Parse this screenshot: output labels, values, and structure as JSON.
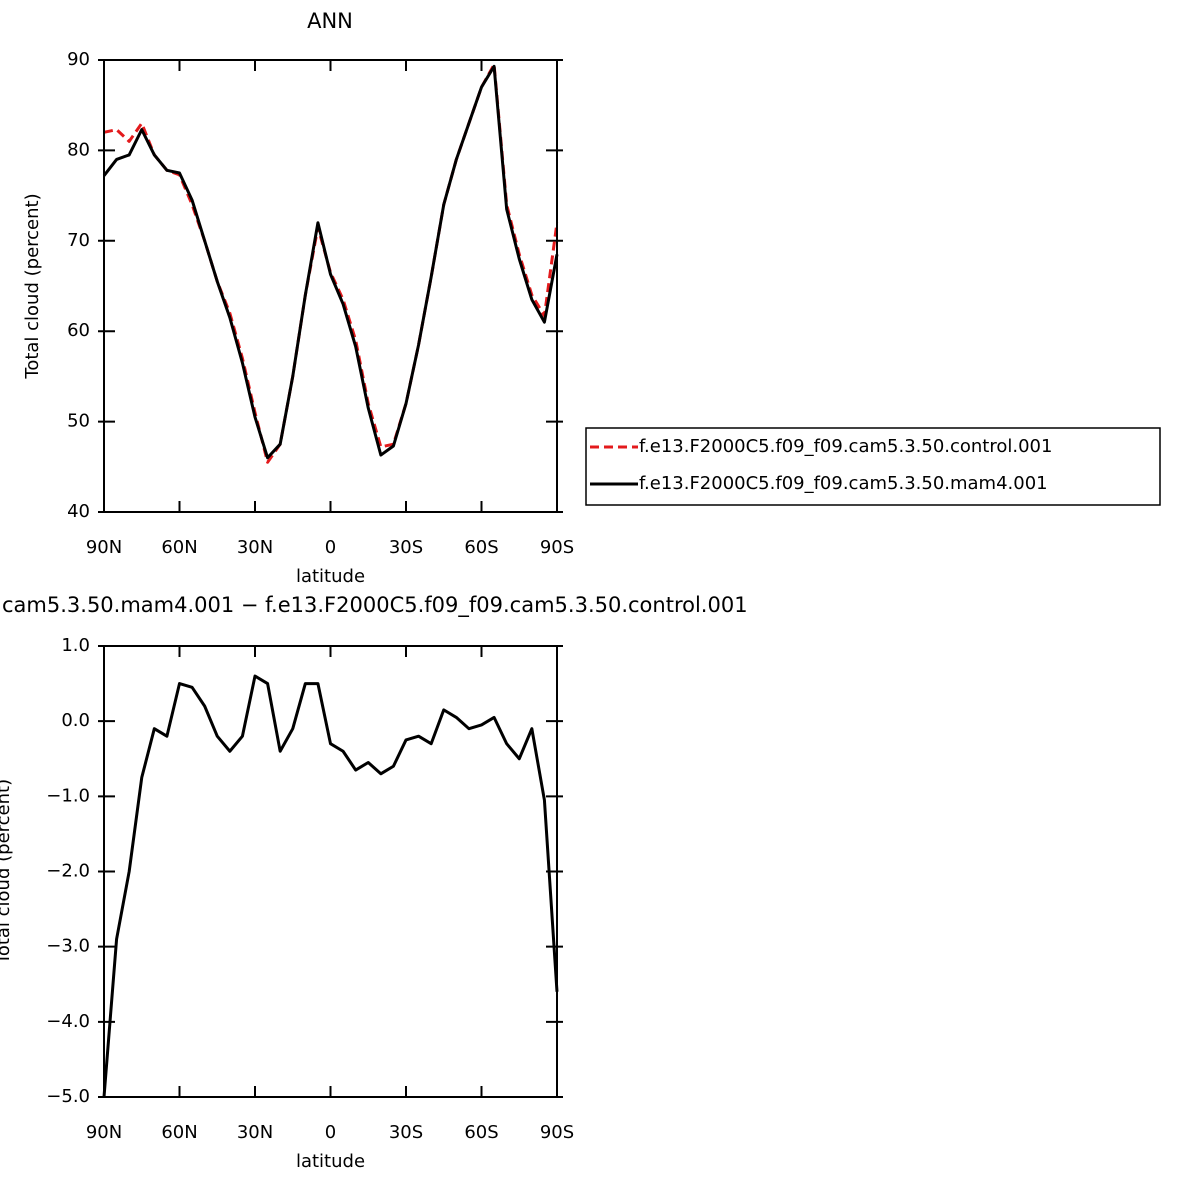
{
  "chart_data": [
    {
      "type": "line",
      "title": "ANN",
      "xlabel": "latitude",
      "ylabel": "Total cloud (percent)",
      "x": [
        90,
        85,
        80,
        75,
        70,
        65,
        60,
        55,
        50,
        45,
        40,
        35,
        30,
        25,
        20,
        15,
        10,
        5,
        0,
        -5,
        -10,
        -15,
        -20,
        -25,
        -30,
        -35,
        -40,
        -45,
        -50,
        -55,
        -60,
        -65,
        -70,
        -75,
        -80,
        -85,
        -90
      ],
      "series": [
        {
          "name": "f.e13.F2000C5.f09_f09.cam5.3.50.control.001",
          "color": "#e31a1c",
          "line_style": "dashed",
          "values": [
            82,
            82.3,
            81,
            83,
            79.5,
            77.8,
            77.3,
            74,
            70,
            65.5,
            62,
            57,
            51,
            45.5,
            47.5,
            55,
            64,
            71.5,
            66.5,
            63.5,
            59,
            52,
            47.2,
            47.5,
            52,
            58.5,
            66,
            74,
            79,
            83,
            87,
            89.5,
            74,
            68.5,
            64,
            61.7,
            72
          ]
        },
        {
          "name": "f.e13.F2000C5.f09_f09.cam5.3.50.mam4.001",
          "color": "#000000",
          "line_style": "solid",
          "values": [
            77.2,
            79,
            79.5,
            82.3,
            79.5,
            77.8,
            77.5,
            74.5,
            70,
            65.5,
            61.5,
            56.5,
            50.5,
            46,
            47.5,
            55,
            64,
            72,
            66.3,
            63,
            58.3,
            51.5,
            46.3,
            47.3,
            52,
            58.5,
            66,
            74,
            79,
            83,
            87,
            89.3,
            73.5,
            68,
            63.5,
            61,
            68.5
          ]
        }
      ],
      "xlim": [
        90,
        -90
      ],
      "xticks": [
        {
          "value": 90,
          "label": "90N"
        },
        {
          "value": 60,
          "label": "60N"
        },
        {
          "value": 30,
          "label": "30N"
        },
        0,
        {
          "value": -30,
          "label": "30S"
        },
        {
          "value": -60,
          "label": "60S"
        },
        {
          "value": -90,
          "label": "90S"
        }
      ],
      "ylim": [
        40,
        90
      ],
      "yticks": [
        40,
        50,
        60,
        70,
        80,
        90
      ],
      "legend": "right"
    },
    {
      "type": "line",
      "title": "cam5.3.50.mam4.001 − f.e13.F2000C5.f09_f09.cam5.3.50.control.001",
      "xlabel": "latitude",
      "ylabel": "Total cloud (percent)",
      "x": [
        90,
        85,
        80,
        75,
        70,
        65,
        60,
        55,
        50,
        45,
        40,
        35,
        30,
        25,
        20,
        15,
        10,
        5,
        0,
        -5,
        -10,
        -15,
        -20,
        -25,
        -30,
        -35,
        -40,
        -45,
        -50,
        -55,
        -60,
        -65,
        -70,
        -75,
        -80,
        -85,
        -90
      ],
      "series": [
        {
          "color": "#000000",
          "line_style": "solid",
          "values": [
            -5.0,
            -2.9,
            -2.0,
            -0.75,
            -0.1,
            -0.2,
            0.5,
            0.45,
            0.2,
            -0.2,
            -0.4,
            -0.2,
            0.6,
            0.5,
            -0.4,
            -0.1,
            0.5,
            0.5,
            -0.3,
            -0.4,
            -0.65,
            -0.55,
            -0.7,
            -0.6,
            -0.25,
            -0.2,
            -0.3,
            0.15,
            0.05,
            -0.1,
            -0.05,
            0.05,
            -0.3,
            -0.5,
            -0.1,
            -1.05,
            -3.6
          ]
        }
      ],
      "xlim": [
        90,
        -90
      ],
      "xticks": [
        {
          "value": 90,
          "label": "90N"
        },
        {
          "value": 60,
          "label": "60N"
        },
        {
          "value": 30,
          "label": "30N"
        },
        0,
        {
          "value": -30,
          "label": "30S"
        },
        {
          "value": -60,
          "label": "60S"
        },
        {
          "value": -90,
          "label": "90S"
        }
      ],
      "ylim": [
        -5,
        1
      ],
      "yticks": [
        {
          "value": 1,
          "label": "1.0"
        },
        {
          "value": 0,
          "label": "0.0"
        },
        {
          "value": -1,
          "label": "−1.0"
        },
        {
          "value": -2,
          "label": "−2.0"
        },
        {
          "value": -3,
          "label": "−3.0"
        },
        {
          "value": -4,
          "label": "−4.0"
        },
        {
          "value": -5,
          "label": "−5.0"
        }
      ]
    }
  ]
}
